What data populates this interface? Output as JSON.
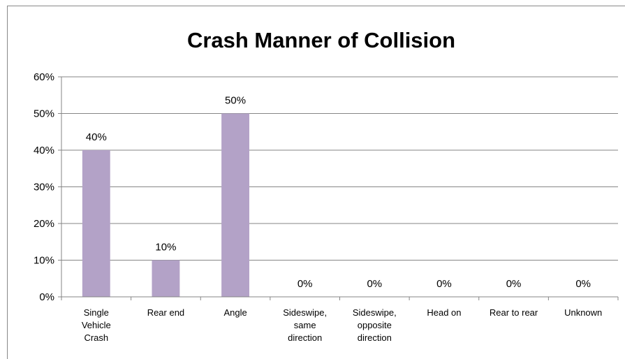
{
  "chart_data": {
    "type": "bar",
    "title": "Crash Manner of Collision",
    "categories": [
      "Single Vehicle Crash",
      "Rear end",
      "Angle",
      "Sideswipe, same direction",
      "Sideswipe, opposite direction",
      "Head on",
      "Rear to rear",
      "Unknown"
    ],
    "values": [
      40,
      10,
      50,
      0,
      0,
      0,
      0,
      0
    ],
    "value_labels": [
      "40%",
      "10%",
      "50%",
      "0%",
      "0%",
      "0%",
      "0%",
      "0%"
    ],
    "color": "#b3a2c7",
    "ylim": [
      0,
      60
    ],
    "yticks": [
      {
        "value": 0,
        "label": "0%"
      },
      {
        "value": 10,
        "label": "10%"
      },
      {
        "value": 20,
        "label": "20%"
      },
      {
        "value": 30,
        "label": "30%"
      },
      {
        "value": 40,
        "label": "40%"
      },
      {
        "value": 50,
        "label": "50%"
      },
      {
        "value": 60,
        "label": "60%"
      }
    ],
    "grid": true
  }
}
